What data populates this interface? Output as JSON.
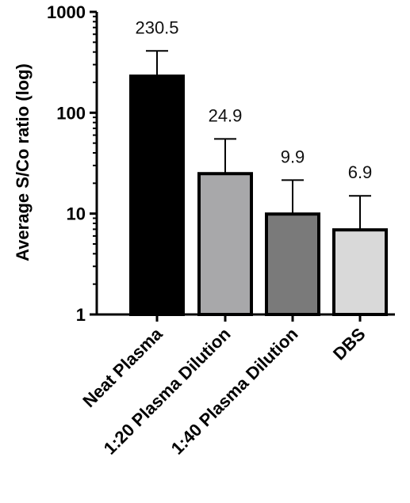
{
  "chart_data": {
    "type": "bar",
    "y_scale": "log",
    "ylabel": "Average S/Co ratio (log)",
    "xlabel": "",
    "ylim": [
      1,
      1000
    ],
    "yticks": [
      1,
      10,
      100,
      1000
    ],
    "ytick_labels": [
      "1",
      "10",
      "100",
      "1000"
    ],
    "categories": [
      "Neat Plasma",
      "1:20 Plasma Dilution",
      "1:40 Plasma Dilution",
      "DBS"
    ],
    "values": [
      230.5,
      24.9,
      9.9,
      6.9
    ],
    "value_labels": [
      "230.5",
      "24.9",
      "9.9",
      "6.9"
    ],
    "error_upper": [
      410,
      55,
      21.5,
      15
    ],
    "bar_colors": [
      "#000000",
      "#a8a8aa",
      "#7a7a7a",
      "#d9d9d9"
    ],
    "grid": false,
    "legend": "none"
  }
}
